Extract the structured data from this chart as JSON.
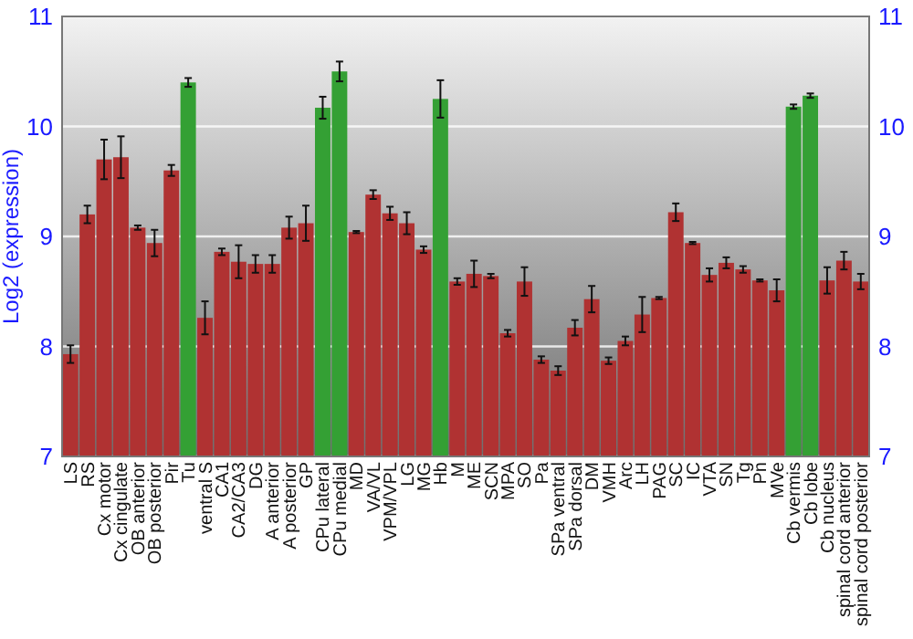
{
  "chart_data": {
    "type": "bar",
    "ylabel": "Log2 (expression)",
    "categories": [
      "LS",
      "RS",
      "Cx motor",
      "Cx cingulate",
      "OB anterior",
      "OB posterior",
      "Pir",
      "Tu",
      "ventral S",
      "CA1",
      "CA2/CA3",
      "DG",
      "A anterior",
      "A posterior",
      "GP",
      "CPu lateral",
      "CPu medial",
      "MD",
      "VA/VL",
      "VPM/VPL",
      "LG",
      "MG",
      "Hb",
      "M",
      "ME",
      "SCN",
      "MPA",
      "SO",
      "Pa",
      "SPa ventral",
      "SPa dorsal",
      "DM",
      "VMH",
      "Arc",
      "LH",
      "PAG",
      "SC",
      "IC",
      "VTA",
      "SN",
      "Tg",
      "Pn",
      "MVe",
      "Cb vermis",
      "Cb lobe",
      "Cb nucleus",
      "spinal cord anterior",
      "spinal cord posterior"
    ],
    "values": [
      7.93,
      9.2,
      9.7,
      9.72,
      9.08,
      8.94,
      9.6,
      10.4,
      8.26,
      8.86,
      8.77,
      8.75,
      8.75,
      9.08,
      9.12,
      10.17,
      10.5,
      9.04,
      9.38,
      9.21,
      9.12,
      8.88,
      10.25,
      8.59,
      8.66,
      8.64,
      8.12,
      8.59,
      7.88,
      7.78,
      8.17,
      8.43,
      7.87,
      8.05,
      8.29,
      8.44,
      9.22,
      8.94,
      8.65,
      8.76,
      8.7,
      8.6,
      8.51,
      10.18,
      10.28,
      8.6,
      8.78,
      8.59
    ],
    "errors": [
      0.08,
      0.08,
      0.18,
      0.19,
      0.02,
      0.12,
      0.05,
      0.04,
      0.15,
      0.03,
      0.15,
      0.08,
      0.08,
      0.1,
      0.16,
      0.1,
      0.09,
      0.01,
      0.04,
      0.06,
      0.1,
      0.03,
      0.17,
      0.03,
      0.12,
      0.02,
      0.03,
      0.13,
      0.03,
      0.04,
      0.07,
      0.12,
      0.03,
      0.04,
      0.16,
      0.01,
      0.08,
      0.01,
      0.06,
      0.05,
      0.03,
      0.01,
      0.1,
      0.02,
      0.02,
      0.12,
      0.08,
      0.07
    ],
    "colors": [
      "#b03232",
      "#b03232",
      "#b03232",
      "#b03232",
      "#b03232",
      "#b03232",
      "#b03232",
      "#34a034",
      "#b03232",
      "#b03232",
      "#b03232",
      "#b03232",
      "#b03232",
      "#b03232",
      "#b03232",
      "#34a034",
      "#34a034",
      "#b03232",
      "#b03232",
      "#b03232",
      "#b03232",
      "#b03232",
      "#34a034",
      "#b03232",
      "#b03232",
      "#b03232",
      "#b03232",
      "#b03232",
      "#b03232",
      "#b03232",
      "#b03232",
      "#b03232",
      "#b03232",
      "#b03232",
      "#b03232",
      "#b03232",
      "#b03232",
      "#b03232",
      "#b03232",
      "#b03232",
      "#b03232",
      "#b03232",
      "#b03232",
      "#34a034",
      "#34a034",
      "#b03232",
      "#b03232",
      "#b03232"
    ],
    "ylim": [
      7,
      11
    ],
    "yticks": [
      7,
      8,
      9,
      10,
      11
    ],
    "y2lim": [
      7,
      11
    ],
    "y2ticks": [
      7,
      8,
      9,
      10,
      11
    ],
    "grid": "y"
  }
}
